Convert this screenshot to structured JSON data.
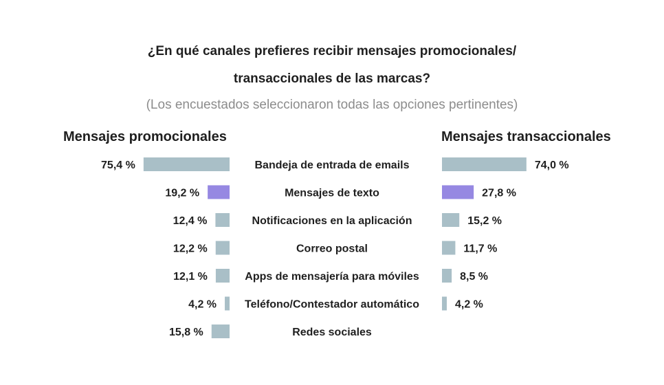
{
  "chart_data": {
    "type": "bar",
    "title_line1": "¿En qué canales prefieres recibir mensajes promocionales/",
    "title_line2": "transaccionales de las marcas?",
    "subtitle": "(Los encuestados seleccionaron todas las opciones pertinentes)",
    "categories": [
      "Bandeja de entrada de emails",
      "Mensajes de texto",
      "Notificaciones en la aplicación",
      "Correo postal",
      "Apps de mensajería para móviles",
      "Teléfono/Contestador automático",
      "Redes sociales"
    ],
    "series": [
      {
        "name": "Mensajes promocionales",
        "values": [
          75.4,
          19.2,
          12.4,
          12.2,
          12.1,
          4.2,
          15.8
        ],
        "labels": [
          "75,4 %",
          "19,2 %",
          "12,4 %",
          "12,2 %",
          "12,1 %",
          "4,2 %",
          "15,8 %"
        ]
      },
      {
        "name": "Mensajes transaccionales",
        "values": [
          74.0,
          27.8,
          15.2,
          11.7,
          8.5,
          4.2,
          null
        ],
        "labels": [
          "74,0 %",
          "27,8 %",
          "15,2 %",
          "11,7 %",
          "8,5 %",
          "4,2 %",
          null
        ]
      }
    ],
    "highlight_category": "Mensajes de texto",
    "colors": {
      "bar": "#a9bfc7",
      "highlight": "#9688e2",
      "text": "#1f1f1f",
      "subtitle": "#8c8c8c"
    }
  }
}
